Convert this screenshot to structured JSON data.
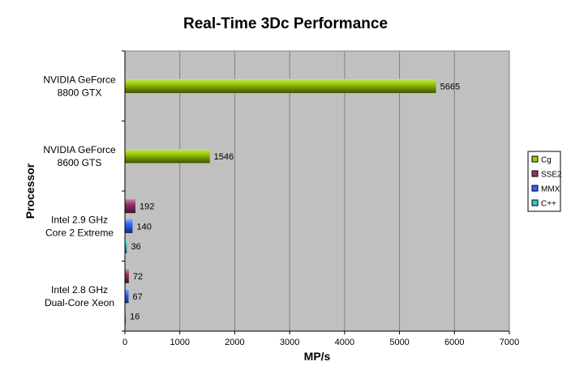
{
  "chart_data": {
    "type": "bar",
    "orientation": "horizontal",
    "title": "Real-Time 3Dc Performance",
    "xlabel": "MP/s",
    "ylabel": "Processor",
    "xlim": [
      0,
      7000
    ],
    "xticks": [
      0,
      1000,
      2000,
      3000,
      4000,
      5000,
      6000,
      7000
    ],
    "grid": true,
    "legend_position": "right",
    "categories": [
      {
        "lines": [
          "NVIDIA GeForce",
          "8800 GTX"
        ]
      },
      {
        "lines": [
          "NVIDIA GeForce",
          "8600 GTS"
        ]
      },
      {
        "lines": [
          "Intel 2.9 GHz",
          "Core 2 Extreme"
        ]
      },
      {
        "lines": [
          "Intel 2.8 GHz",
          "Dual-Core Xeon"
        ]
      }
    ],
    "series": [
      {
        "name": "Cg",
        "color": "#99cc00",
        "values": [
          5665,
          1546,
          null,
          null
        ]
      },
      {
        "name": "SSE2",
        "color": "#993366",
        "values": [
          null,
          null,
          192,
          72
        ]
      },
      {
        "name": "MMX",
        "color": "#3366ff",
        "values": [
          null,
          null,
          140,
          67
        ]
      },
      {
        "name": "C++",
        "color": "#33cccc",
        "values": [
          null,
          null,
          36,
          16
        ]
      }
    ]
  }
}
